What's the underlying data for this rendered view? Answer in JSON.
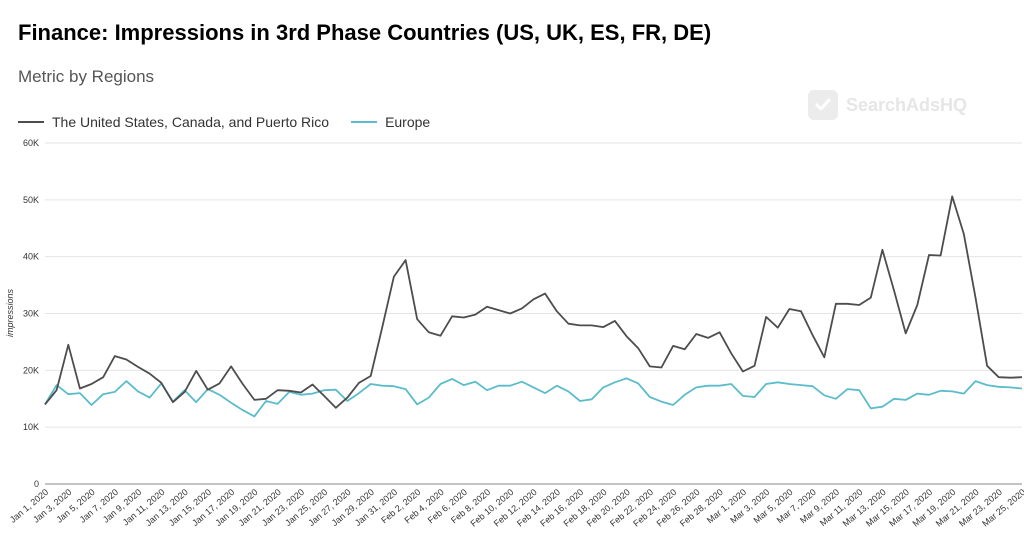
{
  "header": {
    "title": "Finance: Impressions in 3rd Phase Countries (US, UK, ES, FR, DE)",
    "subtitle": "Metric by Regions",
    "watermark": "SearchAdsHQ"
  },
  "colors": {
    "series_1": "#4d4d4d",
    "series_2": "#5bbccb",
    "grid": "#e5e5e5",
    "axis": "#888888"
  },
  "chart_data": {
    "type": "line",
    "title": "Finance: Impressions in 3rd Phase Countries (US, UK, ES, FR, DE)",
    "subtitle": "Metric by Regions",
    "xlabel": "",
    "ylabel": "impressions",
    "ylim": [
      0,
      60000
    ],
    "yticks": [
      0,
      10000,
      20000,
      30000,
      40000,
      50000,
      60000
    ],
    "ytick_labels": [
      "0",
      "10K",
      "20K",
      "30K",
      "40K",
      "50K",
      "60K"
    ],
    "grid": true,
    "legend_position": "top-left",
    "x": [
      "2020-01-01",
      "2020-01-02",
      "2020-01-03",
      "2020-01-04",
      "2020-01-05",
      "2020-01-06",
      "2020-01-07",
      "2020-01-08",
      "2020-01-09",
      "2020-01-10",
      "2020-01-11",
      "2020-01-12",
      "2020-01-13",
      "2020-01-14",
      "2020-01-15",
      "2020-01-16",
      "2020-01-17",
      "2020-01-18",
      "2020-01-19",
      "2020-01-20",
      "2020-01-21",
      "2020-01-22",
      "2020-01-23",
      "2020-01-24",
      "2020-01-25",
      "2020-01-26",
      "2020-01-27",
      "2020-01-28",
      "2020-01-29",
      "2020-01-30",
      "2020-01-31",
      "2020-02-01",
      "2020-02-02",
      "2020-02-03",
      "2020-02-04",
      "2020-02-05",
      "2020-02-06",
      "2020-02-07",
      "2020-02-08",
      "2020-02-09",
      "2020-02-10",
      "2020-02-11",
      "2020-02-12",
      "2020-02-13",
      "2020-02-14",
      "2020-02-15",
      "2020-02-16",
      "2020-02-17",
      "2020-02-18",
      "2020-02-19",
      "2020-02-20",
      "2020-02-21",
      "2020-02-22",
      "2020-02-23",
      "2020-02-24",
      "2020-02-25",
      "2020-02-26",
      "2020-02-27",
      "2020-02-28",
      "2020-02-29",
      "2020-03-01",
      "2020-03-02",
      "2020-03-03",
      "2020-03-04",
      "2020-03-05",
      "2020-03-06",
      "2020-03-07",
      "2020-03-08",
      "2020-03-09",
      "2020-03-10",
      "2020-03-11",
      "2020-03-12",
      "2020-03-13",
      "2020-03-14",
      "2020-03-15",
      "2020-03-16",
      "2020-03-17",
      "2020-03-18",
      "2020-03-19",
      "2020-03-20",
      "2020-03-21",
      "2020-03-22",
      "2020-03-23",
      "2020-03-24",
      "2020-03-25"
    ],
    "x_tick_labels": [
      "Jan 1, 2020",
      "Jan 3, 2020",
      "Jan 5, 2020",
      "Jan 7, 2020",
      "Jan 9, 2020",
      "Jan 11, 2020",
      "Jan 13, 2020",
      "Jan 15, 2020",
      "Jan 17, 2020",
      "Jan 19, 2020",
      "Jan 21, 2020",
      "Jan 23, 2020",
      "Jan 25, 2020",
      "Jan 27, 2020",
      "Jan 29, 2020",
      "Jan 31, 2020",
      "Feb 2, 2020",
      "Feb 4, 2020",
      "Feb 6, 2020",
      "Feb 8, 2020",
      "Feb 10, 2020",
      "Feb 12, 2020",
      "Feb 14, 2020",
      "Feb 16, 2020",
      "Feb 18, 2020",
      "Feb 20, 2020",
      "Feb 22, 2020",
      "Feb 24, 2020",
      "Feb 26, 2020",
      "Feb 28, 2020",
      "Mar 1, 2020",
      "Mar 3, 2020",
      "Mar 5, 2020",
      "Mar 7, 2020",
      "Mar 9, 2020",
      "Mar 11, 2020",
      "Mar 13, 2020",
      "Mar 15, 2020",
      "Mar 17, 2020",
      "Mar 19, 2020",
      "Mar 21, 2020",
      "Mar 23, 2020",
      "Mar 25, 2020"
    ],
    "series": [
      {
        "name": "The United States, Canada, and Puerto Rico",
        "values": [
          14000,
          16500,
          24500,
          16800,
          17600,
          18800,
          22500,
          21900,
          20600,
          19400,
          17800,
          14400,
          16200,
          19900,
          16600,
          17700,
          20700,
          17600,
          14800,
          15000,
          16500,
          16400,
          16100,
          17500,
          15500,
          13400,
          15200,
          17800,
          19000,
          27600,
          36500,
          39400,
          29000,
          26700,
          26100,
          29500,
          29300,
          29800,
          31200,
          30600,
          30000,
          30900,
          32500,
          33500,
          30400,
          28200,
          27900,
          27900,
          27600,
          28700,
          26000,
          23900,
          20700,
          20500,
          24300,
          23700,
          26400,
          25700,
          26700,
          23000,
          19800,
          20800,
          29400,
          27500,
          30800,
          30400,
          26200,
          22300,
          31700,
          31700,
          31500,
          32800,
          41200,
          34000,
          26500,
          31500,
          40300,
          40200,
          50600,
          44000,
          32800,
          20800,
          18800,
          18700,
          18800
        ]
      },
      {
        "name": "Europe",
        "values": [
          14000,
          17400,
          15800,
          16000,
          13900,
          15800,
          16200,
          18100,
          16300,
          15200,
          17700,
          14500,
          16500,
          14400,
          16700,
          15700,
          14300,
          13000,
          11900,
          14600,
          14100,
          16200,
          15700,
          15900,
          16500,
          16600,
          14600,
          16000,
          17600,
          17300,
          17200,
          16700,
          14000,
          15200,
          17600,
          18500,
          17400,
          18000,
          16500,
          17300,
          17300,
          18000,
          17000,
          16000,
          17300,
          16300,
          14600,
          14900,
          17000,
          17900,
          18600,
          17700,
          15300,
          14500,
          13900,
          15700,
          17000,
          17300,
          17300,
          17600,
          15500,
          15300,
          17600,
          17900,
          17600,
          17400,
          17200,
          15600,
          15000,
          16700,
          16500,
          13300,
          13600,
          15000,
          14800,
          15900,
          15700,
          16400,
          16300,
          15900,
          18100,
          17400,
          17100,
          17000,
          16800
        ]
      }
    ]
  }
}
